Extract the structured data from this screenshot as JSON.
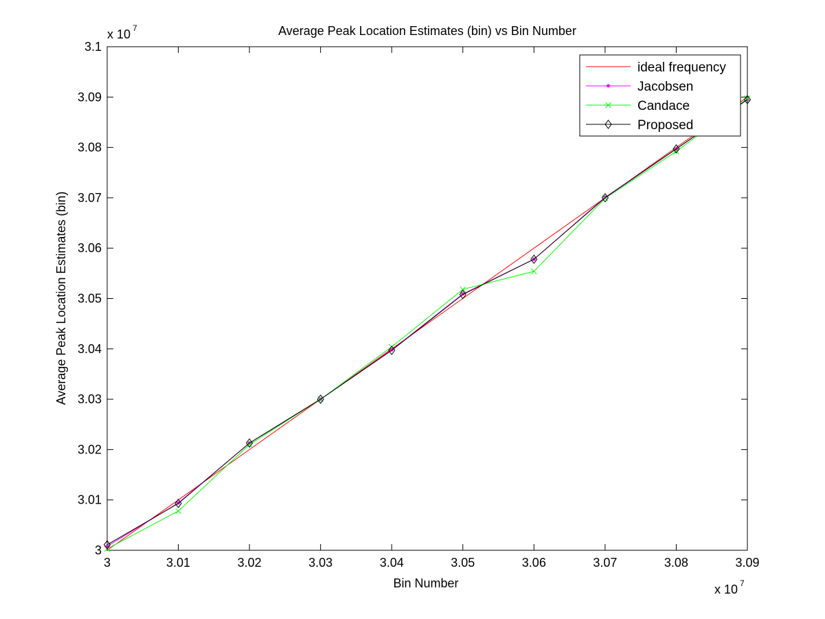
{
  "chart_data": {
    "type": "line",
    "title": "Average Peak Location Estimates (bin) vs Bin Number",
    "xlabel": "Bin Number",
    "ylabel": "Average Peak Location Estimates (bin)",
    "x_multiplier": "x 10",
    "x_multiplier_exp": "7",
    "y_multiplier": "x 10",
    "y_multiplier_exp": "7",
    "xlim": [
      3.0,
      3.09
    ],
    "ylim": [
      3.0,
      3.1
    ],
    "x_ticks": [
      3.0,
      3.01,
      3.02,
      3.03,
      3.04,
      3.05,
      3.06,
      3.07,
      3.08,
      3.09
    ],
    "x_tick_labels": [
      "3",
      "3.01",
      "3.02",
      "3.03",
      "3.04",
      "3.05",
      "3.06",
      "3.07",
      "3.08",
      "3.09"
    ],
    "y_ticks": [
      3.0,
      3.01,
      3.02,
      3.03,
      3.04,
      3.05,
      3.06,
      3.07,
      3.08,
      3.09,
      3.1
    ],
    "y_tick_labels": [
      "3",
      "3.01",
      "3.02",
      "3.03",
      "3.04",
      "3.05",
      "3.06",
      "3.07",
      "3.08",
      "3.09",
      "3.1"
    ],
    "x": [
      3.0,
      3.01,
      3.02,
      3.03,
      3.04,
      3.05,
      3.06,
      3.07,
      3.08,
      3.09
    ],
    "grid": false,
    "legend_position": "top-right",
    "series": [
      {
        "name": "ideal frequency",
        "color": "#ff0000",
        "marker": "none",
        "values": [
          3.0,
          3.01,
          3.02,
          3.03,
          3.04,
          3.05,
          3.06,
          3.07,
          3.08,
          3.09
        ]
      },
      {
        "name": "Jacobsen",
        "color": "#ff00ff",
        "marker": "dot",
        "values": [
          3.0008,
          3.0094,
          3.0213,
          3.03,
          3.0398,
          3.0509,
          3.0578,
          3.0701,
          3.0797,
          3.0895
        ]
      },
      {
        "name": "Candace",
        "color": "#00ff00",
        "marker": "x",
        "values": [
          3.0003,
          3.0078,
          3.021,
          3.03,
          3.0404,
          3.0518,
          3.0554,
          3.0699,
          3.0792,
          3.0897
        ]
      },
      {
        "name": "Proposed",
        "color": "#000000",
        "marker": "diamond",
        "values": [
          3.0011,
          3.0093,
          3.0213,
          3.03,
          3.0397,
          3.0508,
          3.0578,
          3.07,
          3.0797,
          3.0895
        ]
      }
    ]
  }
}
